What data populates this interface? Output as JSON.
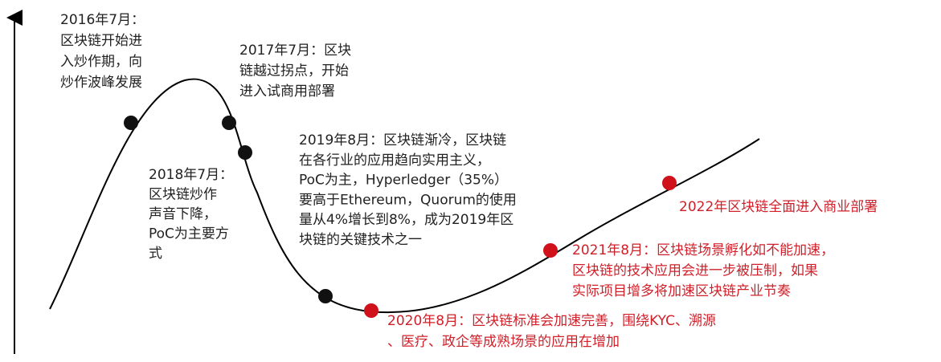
{
  "annotations": [
    {
      "color": "#222222",
      "lines": [
        "2016年7月：",
        "区块链开始进",
        "入炒作期，向",
        "炒作波峰发展"
      ]
    },
    {
      "color": "#222222",
      "lines": [
        "2017年7月：区块",
        "链越过拐点，开始",
        "进入试商用部署"
      ]
    },
    {
      "color": "#222222",
      "lines": [
        "2018年7月：",
        "区块链炒作",
        "声音下降，",
        "PoC为主要方",
        "式"
      ]
    },
    {
      "color": "#222222",
      "lines": [
        "2019年8月：区块链渐冷，区块链",
        "在各行业的应用趋向实用主义，",
        "PoC为主，Hyperledger（35%）",
        "要高于Ethereum，Quorum的使用",
        "量从4%增长到8%，成为2019年区",
        "块链的关键技术之一"
      ]
    },
    {
      "color": "#d0202a",
      "lines": [
        "2020年8月：区块链标准会加速完善，围绕KYC、溯源",
        "、医疗、政企等成熟场景的应用在增加"
      ]
    },
    {
      "color": "#d0202a",
      "lines": [
        "2021年8月：区块链场景孵化如不能加速，",
        "区块链的技术应用会进一步被压制，如果",
        "实际项目增多将加速区块链产业节奏"
      ]
    },
    {
      "color": "#d0202a",
      "lines": [
        "2022年区块链全面进入商业部署"
      ]
    }
  ],
  "points": [
    {
      "color": "#111111"
    },
    {
      "color": "#111111"
    },
    {
      "color": "#111111"
    },
    {
      "color": "#111111"
    },
    {
      "color": "#d0101a"
    },
    {
      "color": "#d0101a"
    },
    {
      "color": "#d0101a"
    }
  ]
}
